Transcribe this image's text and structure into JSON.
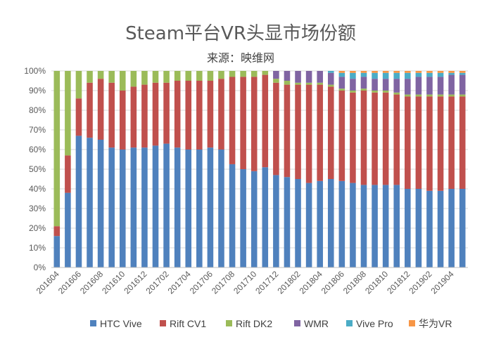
{
  "chart_data": {
    "type": "bar",
    "stacked": true,
    "title": "Steam平台VR头显市场份额",
    "subtitle": "来源：映维网",
    "ylim": [
      0,
      100
    ],
    "y_ticks": [
      "0%",
      "10%",
      "20%",
      "30%",
      "40%",
      "50%",
      "60%",
      "70%",
      "80%",
      "90%",
      "100%"
    ],
    "grid": true,
    "legend_position": "bottom",
    "categories": [
      "201604",
      "201605",
      "201606",
      "201607",
      "201608",
      "201609",
      "201610",
      "201611",
      "201612",
      "201701",
      "201702",
      "201703",
      "201704",
      "201705",
      "201706",
      "201707",
      "201708",
      "201709",
      "201710",
      "201711",
      "201712",
      "201801",
      "201802",
      "201803",
      "201804",
      "201805",
      "201806",
      "201807",
      "201808",
      "201809",
      "201810",
      "201811",
      "201812",
      "201901",
      "201902",
      "201903",
      "201904",
      "201905"
    ],
    "x_tick_labels": [
      "201604",
      "201606",
      "201608",
      "201610",
      "201612",
      "201702",
      "201704",
      "201706",
      "201708",
      "201710",
      "201712",
      "201802",
      "201804",
      "201806",
      "201808",
      "201810",
      "201812",
      "201902",
      "201904"
    ],
    "series": [
      {
        "name": "HTC Vive",
        "color": "#4f81bd",
        "values": [
          16,
          38,
          67,
          66,
          65,
          61,
          60,
          61,
          61,
          62,
          63,
          61,
          60,
          60,
          61,
          60,
          52,
          50,
          49,
          51,
          47,
          46,
          45,
          43,
          44,
          45,
          44,
          43,
          42,
          42,
          42,
          42,
          40,
          40,
          39,
          39,
          40,
          40
        ]
      },
      {
        "name": "Rift CV1",
        "color": "#c0504d",
        "values": [
          5,
          19,
          19,
          28,
          31,
          33,
          30,
          31,
          32,
          32,
          31,
          34,
          35,
          35,
          34,
          36,
          44,
          47,
          48,
          47,
          47,
          47,
          48,
          50,
          49,
          47,
          46,
          46,
          48,
          47,
          47,
          46,
          47,
          47,
          48,
          48,
          47,
          47
        ]
      },
      {
        "name": "Rift DK2",
        "color": "#9bbb59",
        "values": [
          79,
          43,
          14,
          6,
          4,
          6,
          10,
          8,
          7,
          6,
          6,
          5,
          5,
          5,
          5,
          4,
          3,
          3,
          3,
          2,
          2,
          2,
          1,
          1,
          1,
          1,
          1,
          1,
          1,
          1,
          1,
          1,
          1,
          1,
          1,
          1,
          1,
          1
        ]
      },
      {
        "name": "WMR",
        "color": "#8064a2",
        "values": [
          0,
          0,
          0,
          0,
          0,
          0,
          0,
          0,
          0,
          0,
          0,
          0,
          0,
          0,
          0,
          0,
          0,
          0,
          0,
          0,
          4,
          5,
          6,
          6,
          6,
          6,
          6,
          6,
          6,
          6,
          6,
          7,
          8,
          9,
          9,
          9,
          10,
          10
        ]
      },
      {
        "name": "Vive Pro",
        "color": "#4bacc6",
        "values": [
          0,
          0,
          0,
          0,
          0,
          0,
          0,
          0,
          0,
          0,
          0,
          0,
          0,
          0,
          0,
          0,
          0,
          0,
          0,
          0,
          0,
          0,
          0,
          0,
          0,
          1,
          2,
          3,
          2,
          3,
          3,
          3,
          3,
          2,
          2,
          2,
          1,
          1
        ]
      },
      {
        "name": "华为VR",
        "color": "#f79646",
        "values": [
          0,
          0,
          0,
          0,
          0,
          0,
          0,
          0,
          0,
          0,
          0,
          0,
          0,
          0,
          0,
          0,
          0,
          0,
          0,
          0,
          0,
          0,
          0,
          0,
          0,
          0,
          1,
          1,
          1,
          1,
          1,
          1,
          1,
          1,
          1,
          1,
          1,
          1
        ]
      }
    ]
  }
}
